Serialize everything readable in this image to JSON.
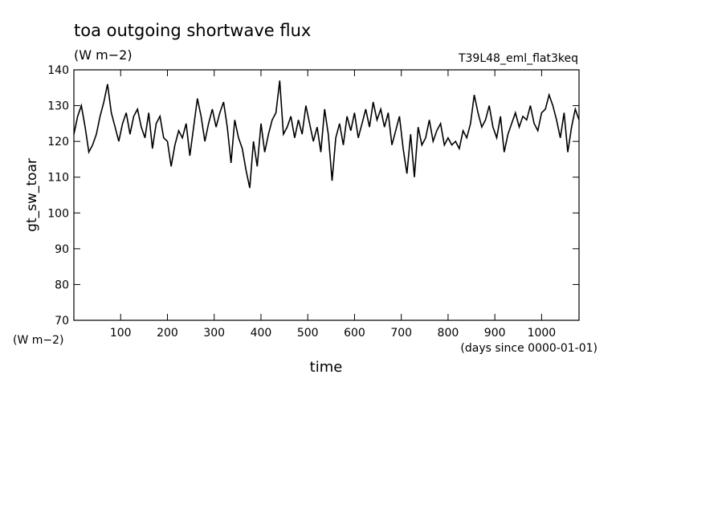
{
  "chart_data": {
    "type": "line",
    "title": "toa outgoing shortwave flux",
    "subtitle": "(W m−2)",
    "annotation": "T39L48_eml_flat3keq",
    "ylabel": "gt_sw_toar",
    "yunits": "(W m−2)",
    "xlabel": "time",
    "xunits": "(days since 0000-01-01)",
    "color": "#000000",
    "xlim": [
      0,
      1080
    ],
    "ylim": [
      70,
      140
    ],
    "xticks": [
      100,
      200,
      300,
      400,
      500,
      600,
      700,
      800,
      900,
      1000
    ],
    "yticks": [
      70,
      80,
      90,
      100,
      110,
      120,
      130,
      140
    ],
    "x": [
      0,
      8,
      16,
      24,
      32,
      40,
      48,
      56,
      64,
      72,
      80,
      88,
      96,
      104,
      112,
      120,
      128,
      136,
      144,
      152,
      160,
      168,
      176,
      184,
      192,
      200,
      208,
      216,
      224,
      232,
      240,
      248,
      256,
      264,
      272,
      280,
      288,
      296,
      304,
      312,
      320,
      328,
      336,
      344,
      352,
      360,
      368,
      376,
      384,
      392,
      400,
      408,
      416,
      424,
      432,
      440,
      448,
      456,
      464,
      472,
      480,
      488,
      496,
      504,
      512,
      520,
      528,
      536,
      544,
      552,
      560,
      568,
      576,
      584,
      592,
      600,
      608,
      616,
      624,
      632,
      640,
      648,
      656,
      664,
      672,
      680,
      688,
      696,
      704,
      712,
      720,
      728,
      736,
      744,
      752,
      760,
      768,
      776,
      784,
      792,
      800,
      808,
      816,
      824,
      832,
      840,
      848,
      856,
      864,
      872,
      880,
      888,
      896,
      904,
      912,
      920,
      928,
      936,
      944,
      952,
      960,
      968,
      976,
      984,
      992,
      1000,
      1008,
      1016,
      1024,
      1032,
      1040,
      1048,
      1056,
      1064,
      1072,
      1080
    ],
    "values": [
      122,
      127,
      130,
      124,
      117,
      119,
      122,
      127,
      131,
      136,
      128,
      124,
      120,
      125,
      128,
      122,
      127,
      129,
      124,
      121,
      128,
      118,
      125,
      127,
      121,
      120,
      113,
      119,
      123,
      121,
      125,
      116,
      124,
      132,
      127,
      120,
      125,
      129,
      124,
      128,
      131,
      124,
      114,
      126,
      121,
      118,
      112,
      107,
      120,
      113,
      125,
      117,
      122,
      126,
      128,
      137,
      122,
      124,
      127,
      121,
      126,
      122,
      130,
      125,
      120,
      124,
      117,
      129,
      122,
      109,
      121,
      125,
      119,
      127,
      123,
      128,
      121,
      125,
      129,
      124,
      131,
      126,
      129,
      124,
      128,
      119,
      123,
      127,
      118,
      111,
      122,
      110,
      124,
      119,
      121,
      126,
      120,
      123,
      125,
      119,
      121,
      119,
      120,
      118,
      123,
      121,
      125,
      133,
      128,
      124,
      126,
      130,
      124,
      121,
      127,
      117,
      122,
      125,
      128,
      124,
      127,
      126,
      130,
      125,
      123,
      128,
      129,
      133,
      130,
      126,
      121,
      128,
      117,
      124,
      129,
      126
    ]
  }
}
